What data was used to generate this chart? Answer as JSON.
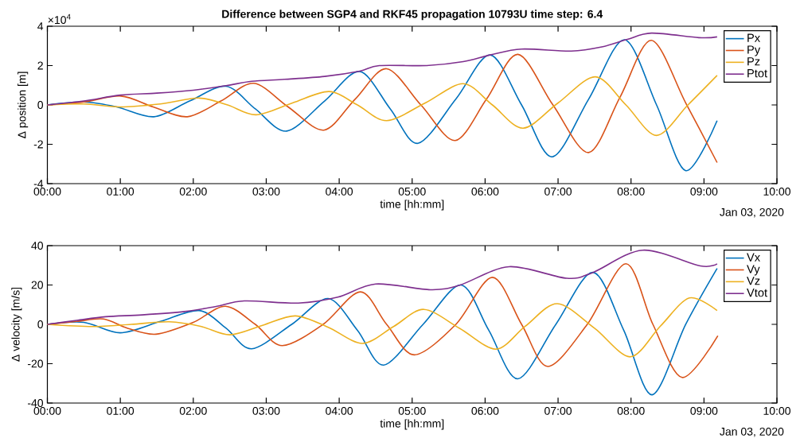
{
  "chart_data": [
    {
      "type": "line",
      "title": "Difference between SGP4 and RKF45 propagation 10793U time step: 6.4",
      "xlabel": "time [hh:mm]",
      "ylabel": "Δ position [m]",
      "legend": "top right",
      "annotations": [
        "×10$^{4}$",
        "Jan 03, 2020"
      ],
      "xlim": [
        0,
        10
      ],
      "xticks": [
        {
          "value": 0,
          "label": "00:00"
        },
        {
          "value": 1,
          "label": "01:00"
        },
        {
          "value": 2,
          "label": "02:00"
        },
        {
          "value": 3,
          "label": "03:00"
        },
        {
          "value": 4,
          "label": "04:00"
        },
        {
          "value": 5,
          "label": "05:00"
        },
        {
          "value": 6,
          "label": "06:00"
        },
        {
          "value": 7,
          "label": "07:00"
        },
        {
          "value": 8,
          "label": "08:00"
        },
        {
          "value": 9,
          "label": "09:00"
        },
        {
          "value": 10,
          "label": "10:00"
        }
      ],
      "ylim": [
        -4,
        4
      ],
      "yticks": [
        -4,
        -2,
        0,
        2,
        4
      ],
      "series": [
        {
          "name": "Px",
          "color": "#0072bd",
          "x": [
            0,
            0.5,
            0.95,
            1.46,
            1.95,
            2.45,
            2.85,
            3.28,
            3.8,
            4.28,
            4.7,
            5.08,
            5.6,
            6.07,
            6.5,
            6.92,
            7.42,
            7.91,
            8.35,
            8.75,
            9.18
          ],
          "values": [
            0,
            0.15,
            -0.1,
            -0.6,
            0.2,
            0.95,
            -0.2,
            -1.33,
            0.2,
            1.7,
            -0.2,
            -1.95,
            0.3,
            2.54,
            0,
            -2.64,
            0.3,
            3.31,
            0,
            -3.34,
            -0.8
          ]
        },
        {
          "name": "Py",
          "color": "#d95319",
          "x": [
            0,
            0.5,
            1.01,
            1.45,
            1.92,
            2.38,
            2.83,
            3.3,
            3.79,
            4.22,
            4.65,
            5.12,
            5.59,
            6.02,
            6.45,
            6.93,
            7.42,
            7.85,
            8.28,
            8.75,
            9.18
          ],
          "values": [
            0,
            0.15,
            0.45,
            -0.1,
            -0.6,
            0.2,
            1.1,
            -0.1,
            -1.28,
            0.3,
            1.84,
            0,
            -1.81,
            0.3,
            2.57,
            0,
            -2.42,
            0.4,
            3.28,
            0.1,
            -2.93
          ]
        },
        {
          "name": "Pz",
          "color": "#edb120",
          "x": [
            0,
            0.5,
            0.99,
            1.55,
            2.08,
            2.47,
            2.86,
            3.36,
            3.86,
            4.25,
            4.65,
            5.18,
            5.7,
            6.1,
            6.52,
            7.0,
            7.51,
            7.93,
            8.35,
            8.78,
            9.18
          ],
          "values": [
            0,
            0.05,
            -0.1,
            0.05,
            0.35,
            0,
            -0.5,
            0.1,
            0.68,
            0,
            -0.8,
            0.1,
            1.08,
            0,
            -1.18,
            0.1,
            1.43,
            0,
            -1.55,
            0,
            1.5
          ]
        },
        {
          "name": "Ptot",
          "color": "#7e2f8e",
          "x": [
            0,
            0.5,
            1.0,
            1.5,
            2.0,
            2.45,
            2.8,
            3.25,
            3.8,
            4.28,
            4.55,
            5.2,
            5.7,
            6.07,
            6.5,
            7.18,
            7.6,
            7.95,
            8.28,
            8.93,
            9.18
          ],
          "values": [
            0,
            0.2,
            0.5,
            0.6,
            0.75,
            0.98,
            1.2,
            1.3,
            1.45,
            1.72,
            2.0,
            2.0,
            2.2,
            2.54,
            2.84,
            2.74,
            2.95,
            3.33,
            3.65,
            3.42,
            3.46
          ]
        }
      ]
    },
    {
      "type": "line",
      "xlabel": "time [hh:mm]",
      "ylabel": "Δ velocity [m/s]",
      "legend": "top right",
      "annotations": [
        "Jan 03, 2020"
      ],
      "xlim": [
        0,
        10
      ],
      "xticks": [
        {
          "value": 0,
          "label": "00:00"
        },
        {
          "value": 1,
          "label": "01:00"
        },
        {
          "value": 2,
          "label": "02:00"
        },
        {
          "value": 3,
          "label": "03:00"
        },
        {
          "value": 4,
          "label": "04:00"
        },
        {
          "value": 5,
          "label": "05:00"
        },
        {
          "value": 6,
          "label": "06:00"
        },
        {
          "value": 7,
          "label": "07:00"
        },
        {
          "value": 8,
          "label": "08:00"
        },
        {
          "value": 9,
          "label": "09:00"
        },
        {
          "value": 10,
          "label": "10:00"
        }
      ],
      "ylim": [
        -40,
        40
      ],
      "yticks": [
        -40,
        -20,
        0,
        20,
        40
      ],
      "series": [
        {
          "name": "Vx",
          "color": "#0072bd",
          "x": [
            0,
            0.5,
            1.0,
            1.55,
            2.08,
            2.45,
            2.8,
            3.35,
            3.85,
            4.25,
            4.61,
            5.15,
            5.67,
            6.05,
            6.45,
            6.97,
            7.48,
            7.9,
            8.29,
            8.75,
            9.18
          ],
          "values": [
            0,
            1,
            -4.3,
            1.5,
            7,
            -2,
            -12.4,
            0,
            13.1,
            -3,
            -20.7,
            0,
            20,
            -3,
            -27.7,
            0,
            26.4,
            -3,
            -35.8,
            0,
            28.4
          ]
        },
        {
          "name": "Vy",
          "color": "#d95319",
          "x": [
            0,
            0.4,
            0.77,
            1.1,
            1.49,
            2.0,
            2.44,
            2.85,
            3.22,
            3.78,
            4.29,
            4.65,
            5.03,
            5.6,
            6.1,
            6.5,
            6.86,
            7.4,
            7.93,
            8.3,
            8.7,
            9.19
          ],
          "values": [
            0,
            1.5,
            2.7,
            -2,
            -5,
            1,
            9.2,
            0,
            -10.8,
            0,
            16.5,
            0,
            -15.5,
            0,
            23.9,
            0,
            -21.4,
            0,
            30.8,
            0,
            -27,
            -5.8
          ]
        },
        {
          "name": "Vz",
          "color": "#edb120",
          "x": [
            0,
            0.62,
            1.15,
            1.67,
            2.1,
            2.5,
            2.95,
            3.4,
            3.85,
            4.32,
            4.75,
            5.16,
            5.65,
            6.15,
            6.55,
            6.99,
            7.5,
            7.99,
            8.4,
            8.8,
            9.18
          ],
          "values": [
            0,
            -1.1,
            0,
            1.3,
            -1,
            -5.3,
            -0.5,
            4.3,
            -1.5,
            -9.7,
            -1,
            7.6,
            -2,
            -12.6,
            -1,
            10.5,
            -2,
            -16.5,
            -1,
            13.4,
            7
          ]
        },
        {
          "name": "Vtot",
          "color": "#7e2f8e",
          "x": [
            0,
            0.4,
            0.8,
            1.3,
            1.88,
            2.3,
            2.7,
            3.44,
            3.98,
            4.5,
            5.25,
            5.65,
            6.33,
            7.12,
            7.48,
            8.16,
            8.95,
            9.18
          ],
          "values": [
            0,
            2,
            3.9,
            4.8,
            6.5,
            9,
            11.9,
            10.8,
            13.8,
            20.5,
            17.6,
            19.9,
            29.3,
            23.4,
            26.4,
            37.7,
            29.7,
            30.8
          ]
        }
      ]
    }
  ]
}
